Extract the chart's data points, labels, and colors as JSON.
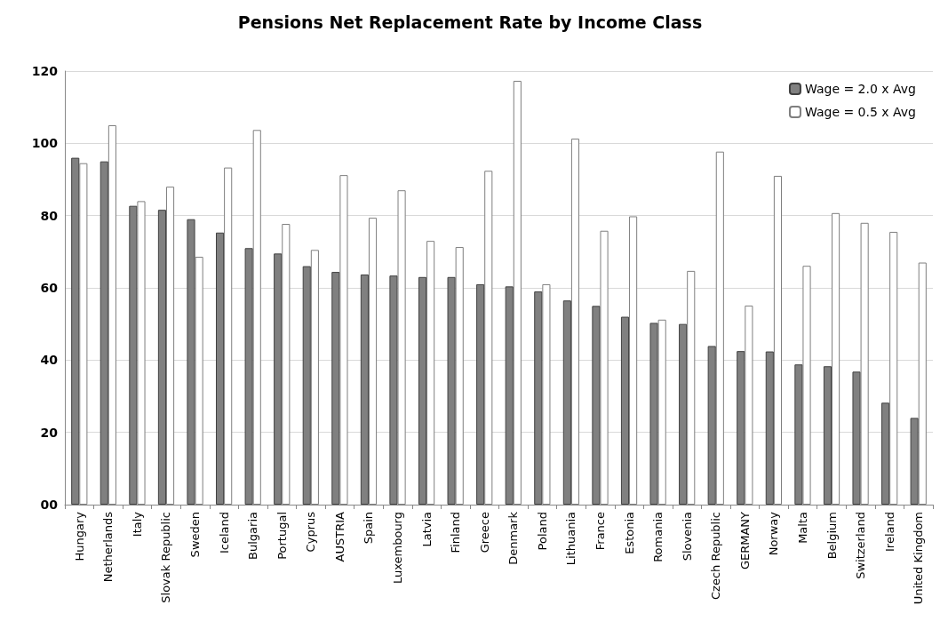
{
  "chart_data": {
    "type": "bar",
    "title": "Pensions Net Replacement Rate by Income Class",
    "categories": [
      "Hungary",
      "Netherlands",
      "Italy",
      "Slovak Republic",
      "Sweden",
      "Iceland",
      "Bulgaria",
      "Portugal",
      "Cyprus",
      "AUSTRIA",
      "Spain",
      "Luxembourg",
      "Latvia",
      "Finland",
      "Greece",
      "Denmark",
      "Poland",
      "Lithuania",
      "France",
      "Estonia",
      "Romania",
      "Slovenia",
      "Czech Republic",
      "GERMANY",
      "Norway",
      "Malta",
      "Belgium",
      "Switzerland",
      "Ireland",
      "United Kingdom"
    ],
    "series": [
      {
        "name": "Wage = 2.0 x Avg",
        "color": "#808080",
        "values": [
          96,
          95,
          82.7,
          81.6,
          79,
          75.3,
          71,
          69.5,
          66,
          64.4,
          63.7,
          63.4,
          63,
          63,
          61,
          60.4,
          59,
          56.5,
          55,
          52,
          50.3,
          50,
          43.9,
          42.5,
          42.4,
          38.8,
          38.3,
          36.8,
          28.2,
          24
        ]
      },
      {
        "name": "Wage = 0.5 x Avg",
        "color": "#ffffff",
        "values": [
          94.5,
          105,
          84,
          88,
          68.6,
          93.3,
          103.7,
          77.7,
          70.5,
          91.2,
          79.4,
          87,
          73,
          71.3,
          92.4,
          117.3,
          61,
          101.3,
          75.8,
          79.8,
          51.2,
          64.7,
          97.7,
          55.1,
          91,
          66.1,
          80.7,
          78,
          75.5,
          67
        ]
      }
    ],
    "ylim": [
      0,
      120
    ],
    "yticks": [
      {
        "value": 0,
        "label": "00"
      },
      20,
      40,
      60,
      80,
      100,
      120
    ],
    "grid": "y",
    "legend": "top right"
  }
}
